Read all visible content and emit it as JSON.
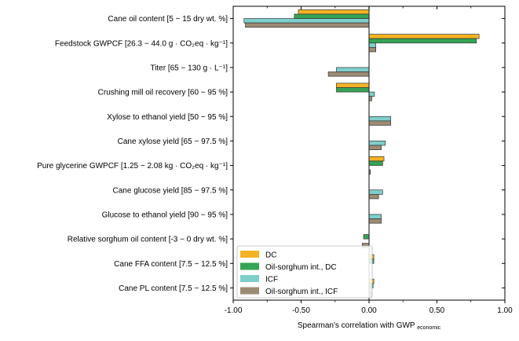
{
  "chart_data": {
    "type": "bar",
    "orientation": "horizontal",
    "title": "",
    "xlabel_main": "Spearman's correlation with GWP",
    "xlabel_sub": "economic",
    "xlim": [
      -1.0,
      1.0
    ],
    "xticks": [
      "-1.00",
      "-0.50",
      "0.00",
      "0.50",
      "1.00"
    ],
    "xtick_values": [
      -1.0,
      -0.5,
      0.0,
      0.5,
      1.0
    ],
    "grid": false,
    "legend_position": "bottom-left",
    "categories": [
      "Cane oil content [5 − 15 dry wt. %]",
      "Feedstock GWPCF [26.3 − 44.0 g · CO₂eq · kg⁻¹]",
      "Titer [65 − 130 g · L⁻¹]",
      "Crushing mill oil recovery [60 − 95 %]",
      "Xylose to ethanol yield [50 − 95 %]",
      "Cane xylose yield [65 − 97.5 %]",
      "Pure glycerine GWPCF [1.25 − 2.08 kg · CO₂eq · kg⁻¹]",
      "Cane glucose yield [85 − 97.5 %]",
      "Glucose to ethanol yield [90 − 95 %]",
      "Relative sorghum oil content [-3 − 0 dry wt. %]",
      "Cane FFA content [7.5 − 12.5 %]",
      "Cane PL content [7.5 − 12.5 %]"
    ],
    "series": [
      {
        "name": "DC",
        "color": "#f5b324",
        "values": [
          -0.52,
          0.81,
          0.0,
          -0.24,
          0.0,
          0.0,
          0.11,
          0.0,
          0.0,
          0.0,
          0.035,
          0.035
        ]
      },
      {
        "name": "Oil-sorghum int., DC",
        "color": "#35a455",
        "values": [
          -0.55,
          0.79,
          0.0,
          -0.24,
          0.0,
          0.0,
          0.1,
          0.0,
          0.0,
          -0.04,
          0.035,
          0.03
        ]
      },
      {
        "name": "ICF",
        "color": "#7ecfcb",
        "values": [
          -0.92,
          0.05,
          -0.24,
          0.04,
          0.16,
          0.12,
          0.0,
          0.1,
          0.09,
          0.0,
          0.0,
          0.015
        ]
      },
      {
        "name": "Oil-sorghum int., ICF",
        "color": "#9c8b73",
        "values": [
          -0.91,
          0.05,
          -0.3,
          0.02,
          0.16,
          0.09,
          0.01,
          0.07,
          0.09,
          -0.05,
          0.0,
          0.02
        ]
      }
    ]
  }
}
